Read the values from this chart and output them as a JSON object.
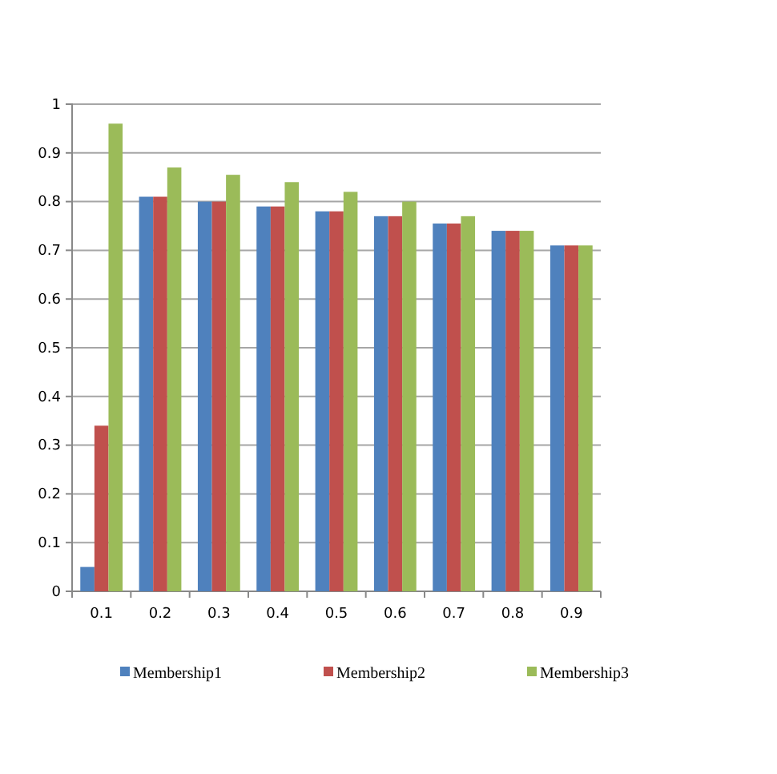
{
  "chart_data": {
    "type": "bar",
    "categories": [
      "0.1",
      "0.2",
      "0.3",
      "0.4",
      "0.5",
      "0.6",
      "0.7",
      "0.8",
      "0.9"
    ],
    "series": [
      {
        "name": "Membership1",
        "color": "#4f81bd",
        "values": [
          0.05,
          0.81,
          0.8,
          0.79,
          0.78,
          0.77,
          0.755,
          0.74,
          0.71
        ]
      },
      {
        "name": "Membership2",
        "color": "#c0504d",
        "values": [
          0.34,
          0.81,
          0.8,
          0.79,
          0.78,
          0.77,
          0.755,
          0.74,
          0.71
        ]
      },
      {
        "name": "Membership3",
        "color": "#9bbb59",
        "values": [
          0.96,
          0.87,
          0.855,
          0.84,
          0.82,
          0.8,
          0.77,
          0.74,
          0.71
        ]
      }
    ],
    "ylim": [
      0,
      1
    ],
    "yticks": [
      0,
      0.1,
      0.2,
      0.3,
      0.4,
      0.5,
      0.6,
      0.7,
      0.8,
      0.9,
      1
    ],
    "grid": "y",
    "legend": "bottom"
  }
}
